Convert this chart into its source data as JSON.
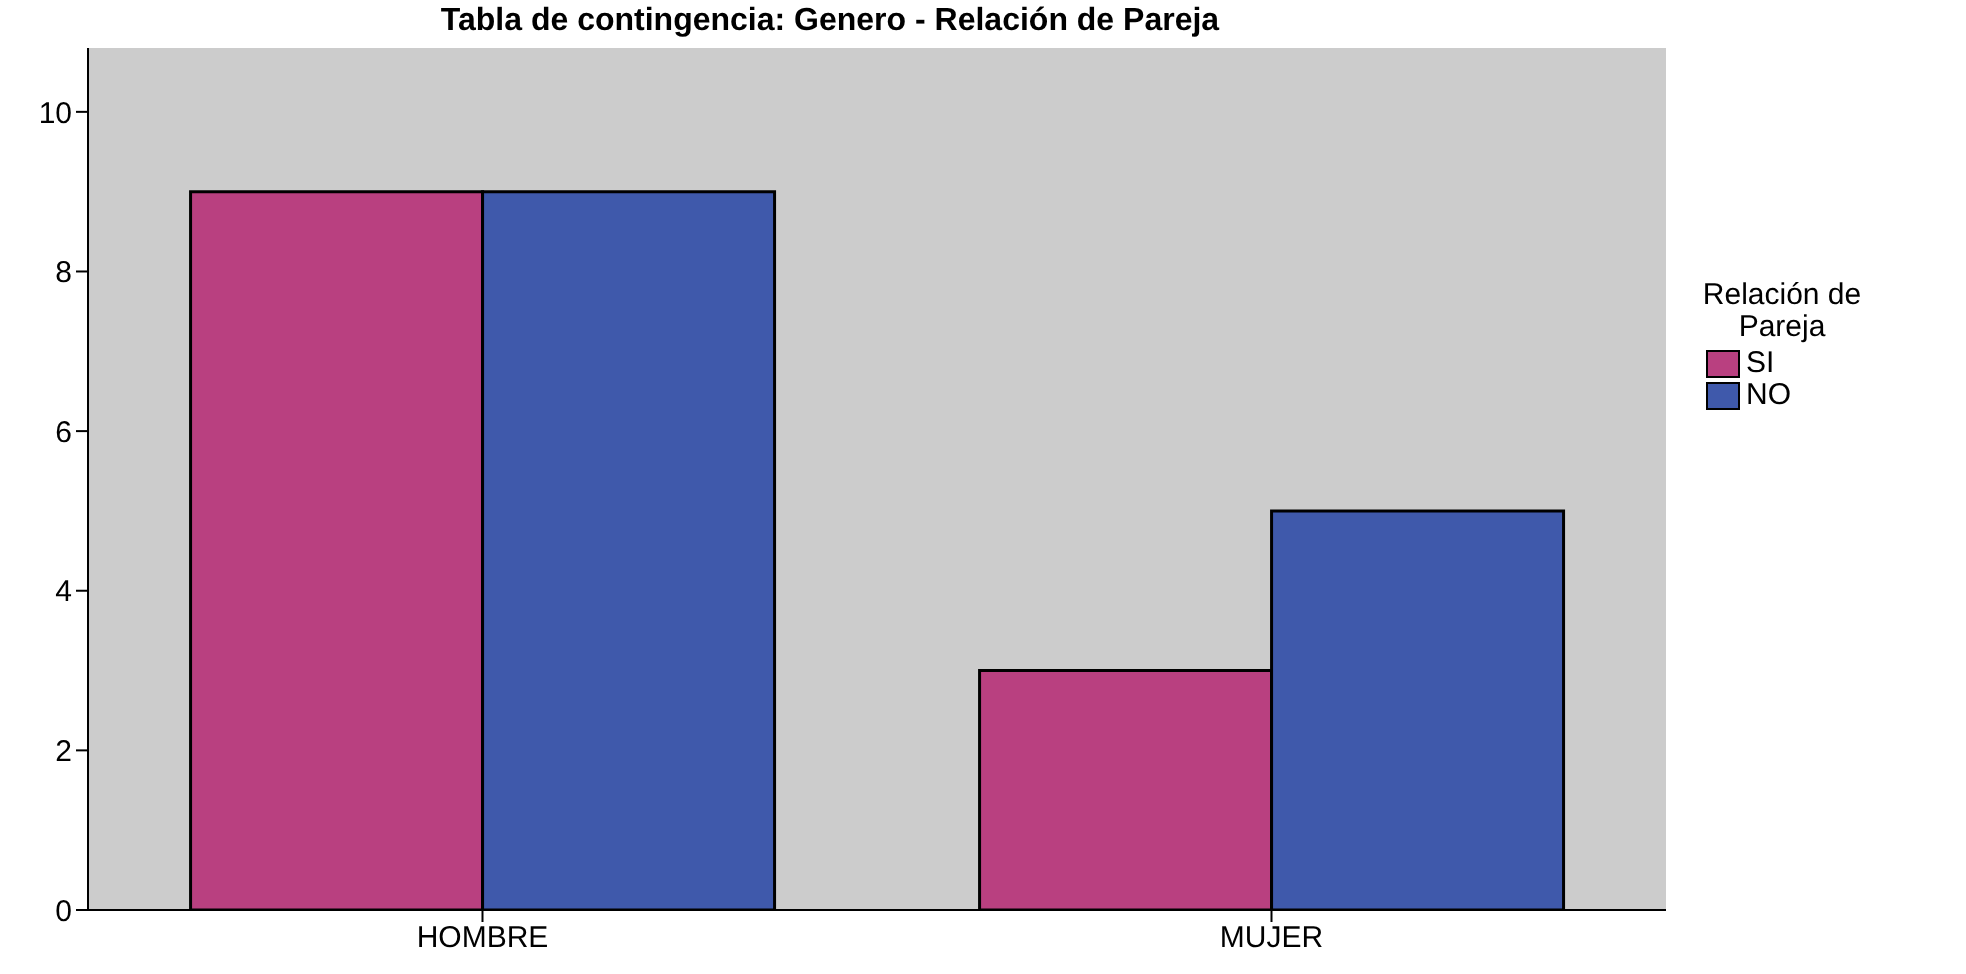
{
  "chart_data": {
    "type": "bar",
    "title": "Tabla de contingencia: Genero - Relación de Pareja",
    "legend_title": "Relación de Pareja",
    "categories": [
      "HOMBRE",
      "MUJER"
    ],
    "series": [
      {
        "name": "SI",
        "color": "#b94080",
        "values": [
          9,
          3
        ]
      },
      {
        "name": "NO",
        "color": "#3f59ab",
        "values": [
          9,
          5
        ]
      }
    ],
    "ylim": [
      0,
      10.8
    ],
    "yticks": [
      0,
      2,
      4,
      6,
      8,
      10
    ],
    "legend": "right"
  }
}
